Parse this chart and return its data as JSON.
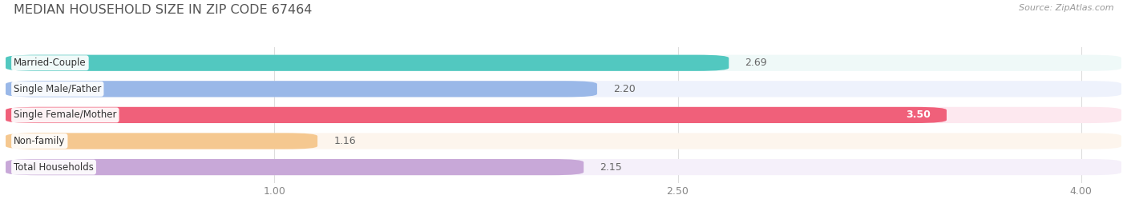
{
  "title": "MEDIAN HOUSEHOLD SIZE IN ZIP CODE 67464",
  "source": "Source: ZipAtlas.com",
  "categories": [
    "Married-Couple",
    "Single Male/Father",
    "Single Female/Mother",
    "Non-family",
    "Total Households"
  ],
  "values": [
    2.69,
    2.2,
    3.5,
    1.16,
    2.15
  ],
  "bar_colors": [
    "#52c8c0",
    "#9ab8e8",
    "#f0607a",
    "#f5c890",
    "#c8a8d8"
  ],
  "bar_bg_colors": [
    "#eff9f8",
    "#eef2fc",
    "#fde8ef",
    "#fdf5ed",
    "#f5f0fa"
  ],
  "xlim_left": 0.0,
  "xlim_right": 4.15,
  "xticks": [
    1.0,
    2.5,
    4.0
  ],
  "bar_height": 0.62,
  "title_color": "#555555",
  "bg_color": "#ffffff",
  "source_color": "#999999",
  "value_color_outside": "#666666",
  "value_color_inside": "#ffffff",
  "grid_color": "#dddddd",
  "label_bg": "#ffffff"
}
